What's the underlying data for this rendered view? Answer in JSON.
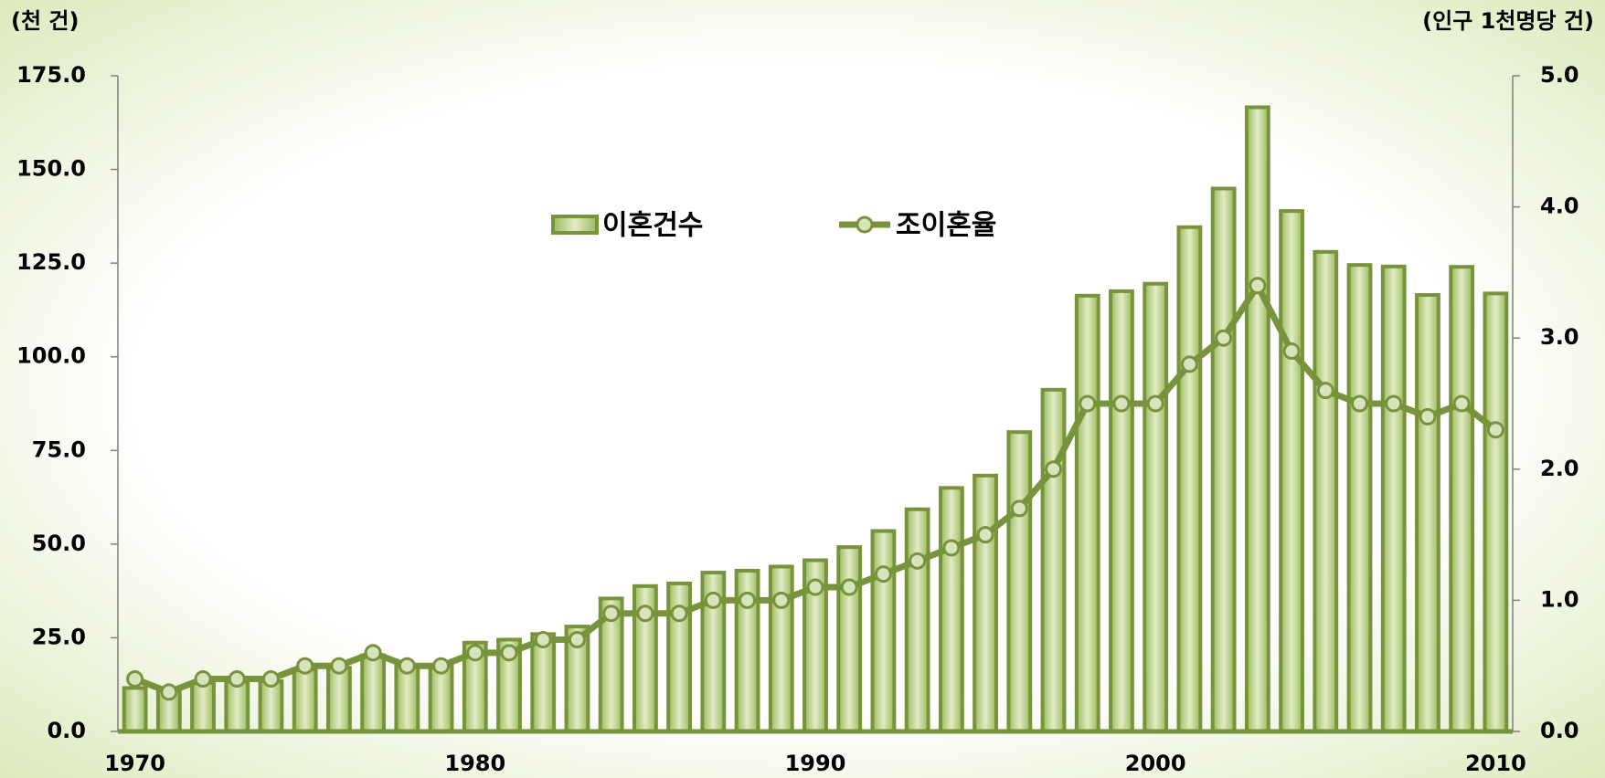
{
  "chart_data": {
    "type": "bar+line",
    "y_label": "(천 건)",
    "y2_label": "(인구 1천명당 건)",
    "categories": [
      "1970",
      null,
      null,
      null,
      null,
      null,
      null,
      null,
      null,
      null,
      "1980",
      null,
      null,
      null,
      null,
      null,
      null,
      null,
      null,
      null,
      "1990",
      null,
      null,
      null,
      null,
      null,
      null,
      null,
      null,
      null,
      "2000",
      null,
      null,
      null,
      null,
      null,
      null,
      null,
      null,
      null,
      "2010"
    ],
    "series": [
      {
        "name": "이혼건수",
        "type": "bar",
        "color": "#77933c",
        "values": [
          11.6,
          11.4,
          13.0,
          13.3,
          13.4,
          16.5,
          17.0,
          20.3,
          17.6,
          17.5,
          23.7,
          24.5,
          26.0,
          28.0,
          35.5,
          38.8,
          39.5,
          42.4,
          42.9,
          44.0,
          45.7,
          49.2,
          53.5,
          59.3,
          65.0,
          68.3,
          79.9,
          91.2,
          116.3,
          117.5,
          119.5,
          134.6,
          144.9,
          166.6,
          138.9,
          128.0,
          124.5,
          124.1,
          116.5,
          124.0,
          116.9
        ]
      },
      {
        "name": "조이혼율",
        "type": "line",
        "axis": "y2",
        "color": "#77933c",
        "values": [
          0.4,
          0.3,
          0.4,
          0.4,
          0.4,
          0.5,
          0.5,
          0.6,
          0.5,
          0.5,
          0.6,
          0.6,
          0.7,
          0.7,
          0.9,
          0.9,
          0.9,
          1.0,
          1.0,
          1.0,
          1.1,
          1.1,
          1.2,
          1.3,
          1.4,
          1.5,
          1.7,
          2.0,
          2.5,
          2.5,
          2.5,
          2.8,
          3.0,
          3.4,
          2.9,
          2.6,
          2.5,
          2.5,
          2.4,
          2.5,
          2.3
        ]
      }
    ],
    "ylim": [
      0,
      175
    ],
    "yticks": [
      {
        "value": 0,
        "label": "0.0"
      },
      {
        "value": 25,
        "label": "25.0"
      },
      {
        "value": 50,
        "label": "50.0"
      },
      {
        "value": 75,
        "label": "75.0"
      },
      {
        "value": 100,
        "label": "100.0"
      },
      {
        "value": 125,
        "label": "125.0"
      },
      {
        "value": 150,
        "label": "150.0"
      },
      {
        "value": 175,
        "label": "175.0"
      }
    ],
    "y2lim": [
      0,
      5
    ],
    "y2ticks": [
      {
        "value": 0,
        "label": "0.0"
      },
      {
        "value": 1,
        "label": "1.0"
      },
      {
        "value": 2,
        "label": "2.0"
      },
      {
        "value": 3,
        "label": "3.0"
      },
      {
        "value": 4,
        "label": "4.0"
      },
      {
        "value": 5,
        "label": "5.0"
      }
    ],
    "grid": false
  }
}
